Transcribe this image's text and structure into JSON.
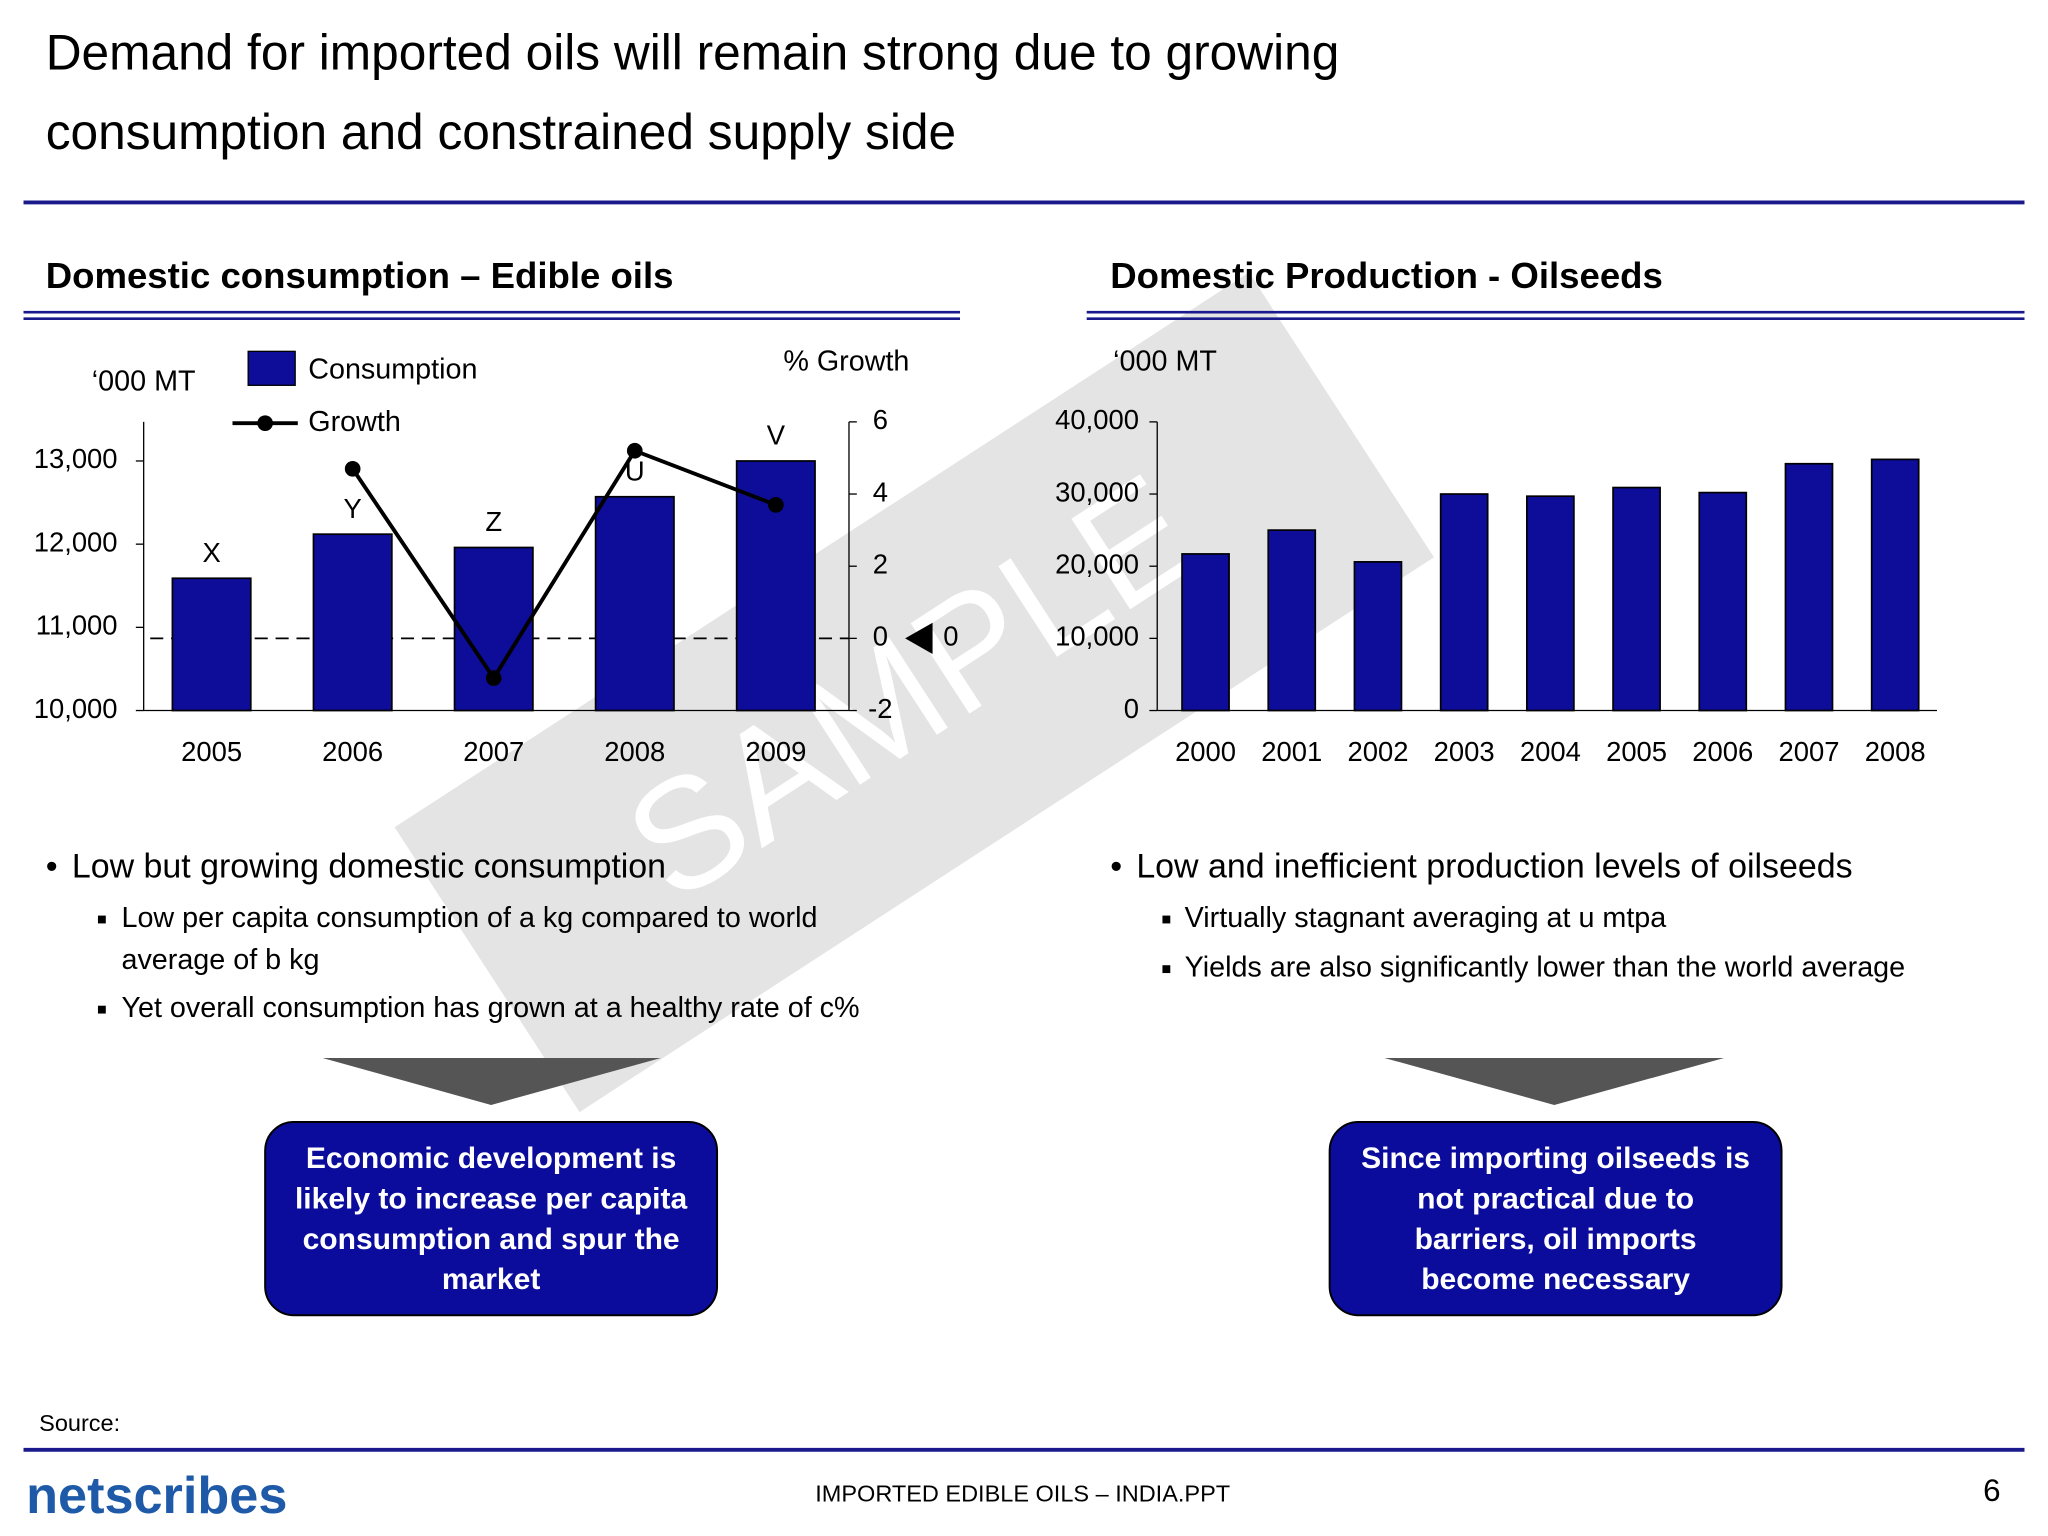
{
  "title": [
    "Demand for imported oils will remain strong due to growing",
    "consumption and constrained supply side"
  ],
  "chart_data": [
    {
      "type": "combo",
      "title": "Domestic consumption – Edible oils",
      "ylabel": "‘000 MT",
      "y2label": "% Growth",
      "categories": [
        "2005",
        "2006",
        "2007",
        "2008",
        "2009"
      ],
      "series": [
        {
          "name": "Consumption",
          "type": "bar",
          "color": "#0d0d9a",
          "values": [
            11590,
            12120,
            11960,
            12570,
            13000
          ]
        },
        {
          "name": "Growth",
          "type": "line",
          "axis": "y2",
          "color": "#000000",
          "values": [
            null,
            4.7,
            -1.1,
            5.2,
            3.7
          ]
        }
      ],
      "bar_labels": [
        "X",
        "Y",
        "Z",
        "U",
        "V"
      ],
      "reference_line": {
        "value": 0,
        "label": "0"
      },
      "ylim": [
        10000,
        13470
      ],
      "yticks": [
        {
          "value": 10000,
          "label": "10,000"
        },
        {
          "value": 11000,
          "label": "11,000"
        },
        {
          "value": 12000,
          "label": "12,000"
        },
        {
          "value": 13000,
          "label": "13,000"
        }
      ],
      "y2lim": [
        -2,
        6
      ],
      "y2ticks": [
        -2,
        0,
        2,
        4,
        6
      ]
    },
    {
      "type": "bar",
      "title": "Domestic Production - Oilseeds",
      "ylabel": "‘000 MT",
      "categories": [
        "2000",
        "2001",
        "2002",
        "2003",
        "2004",
        "2005",
        "2006",
        "2007",
        "2008"
      ],
      "values": [
        21700,
        25000,
        20600,
        30000,
        29700,
        30900,
        30200,
        34200,
        34800
      ],
      "color": "#0d0d9a",
      "ylim": [
        0,
        40000
      ],
      "yticks": [
        0,
        {
          "value": 10000,
          "label": "10,000"
        },
        {
          "value": 20000,
          "label": "20,000"
        },
        {
          "value": 30000,
          "label": "30,000"
        },
        {
          "value": 40000,
          "label": "40,000"
        }
      ]
    }
  ],
  "panels": [
    {
      "bullet": "Low but growing domestic consumption",
      "sub_bullets": [
        [
          "Low per capita consumption of a kg compared to world",
          "average of b kg"
        ],
        [
          "Yet overall consumption has grown at a healthy rate of c%"
        ]
      ],
      "conclusion": [
        "Economic development is",
        "likely to increase per capita",
        "consumption and spur the",
        "market"
      ]
    },
    {
      "bullet": "Low and inefficient production levels of oilseeds",
      "sub_bullets": [
        [
          "Virtually stagnant averaging at u mtpa"
        ],
        [
          "Yields are also significantly lower than the world average"
        ]
      ],
      "conclusion": [
        "Since importing oilseeds is",
        "not practical due to",
        "barriers, oil imports",
        "become necessary"
      ]
    }
  ],
  "watermark": "SAMPLE",
  "source": "Source:",
  "logo": "netscribes",
  "footer": "IMPORTED EDIBLE OILS – INDIA.PPT",
  "page_number": "6"
}
